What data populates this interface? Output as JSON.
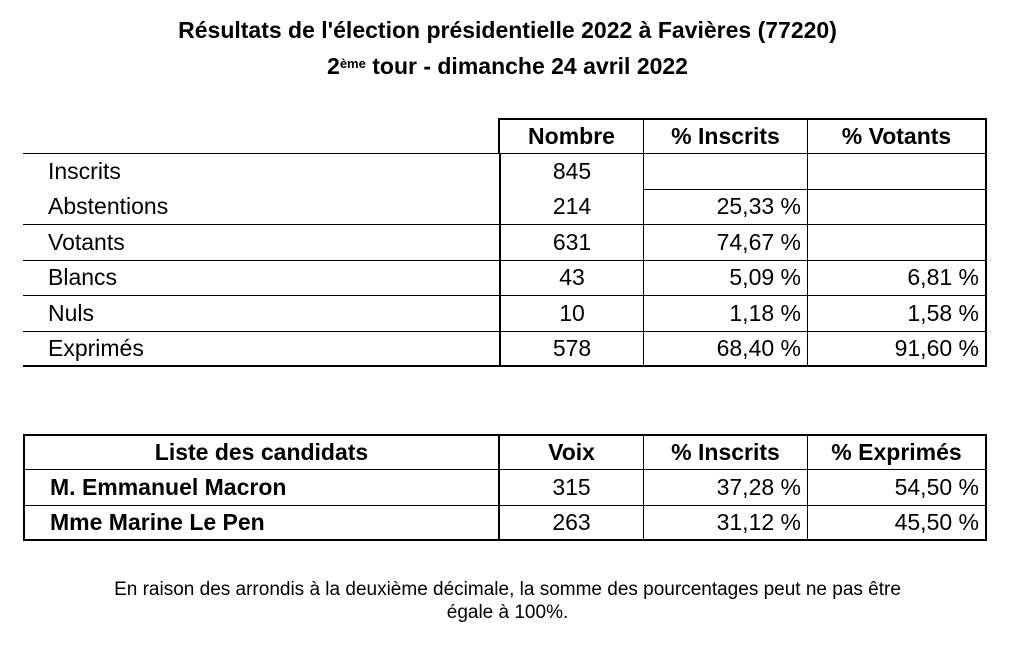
{
  "title": {
    "line1": "Résultats de l'élection présidentielle 2022 à Favières (77220)",
    "line2_num": "2",
    "line2_sup": "ème",
    "line2_rest": " tour - dimanche 24 avril 2022"
  },
  "results": {
    "headers": [
      "Nombre",
      "% Inscrits",
      "% Votants"
    ],
    "rows": [
      {
        "label": "Inscrits",
        "nombre": "845",
        "inscrits": "",
        "votants": ""
      },
      {
        "label": "Abstentions",
        "nombre": "214",
        "inscrits": "25,33 %",
        "votants": ""
      },
      {
        "label": "Votants",
        "nombre": "631",
        "inscrits": "74,67 %",
        "votants": ""
      },
      {
        "label": "Blancs",
        "nombre": "43",
        "inscrits": "5,09 %",
        "votants": "6,81 %"
      },
      {
        "label": "Nuls",
        "nombre": "10",
        "inscrits": "1,18 %",
        "votants": "1,58 %"
      },
      {
        "label": "Exprimés",
        "nombre": "578",
        "inscrits": "68,40 %",
        "votants": "91,60 %"
      }
    ]
  },
  "candidates": {
    "headers": [
      "Liste des candidats",
      "Voix",
      "% Inscrits",
      "% Exprimés"
    ],
    "rows": [
      {
        "name": "M. Emmanuel Macron",
        "voix": "315",
        "inscrits": "37,28 %",
        "exprimes": "54,50 %"
      },
      {
        "name": "Mme Marine Le Pen",
        "voix": "263",
        "inscrits": "31,12 %",
        "exprimes": "45,50 %"
      }
    ]
  },
  "note": {
    "line1": "En raison des arrondis à la deuxième décimale, la somme des pourcentages peut ne pas être",
    "line2": "égale à 100%."
  }
}
